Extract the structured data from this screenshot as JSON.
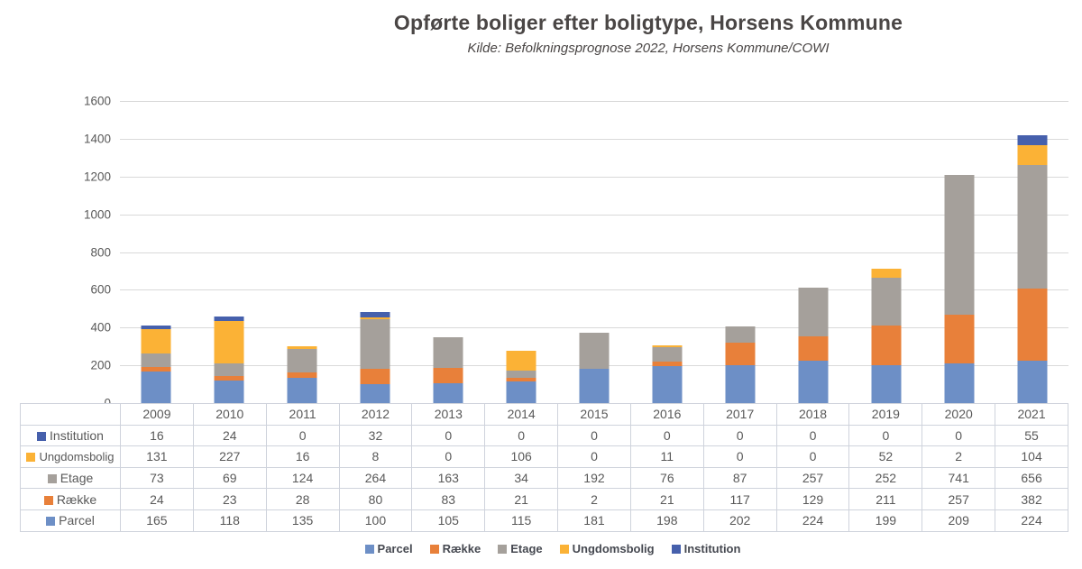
{
  "header": {
    "title": "Opførte boliger efter boligtype, Horsens Kommune",
    "subtitle": "Kilde: Befolkningsprognose 2022, Horsens Kommune/COWI"
  },
  "chart_data": {
    "type": "bar",
    "stacked": true,
    "title": "Opførte boliger efter boligtype, Horsens Kommune",
    "subtitle": "Kilde: Befolkningsprognose 2022, Horsens Kommune/COWI",
    "categories": [
      "2009",
      "2010",
      "2011",
      "2012",
      "2013",
      "2014",
      "2015",
      "2016",
      "2017",
      "2018",
      "2019",
      "2020",
      "2021"
    ],
    "series": [
      {
        "name": "Parcel",
        "color": "#6d8fc6",
        "values": [
          165,
          118,
          135,
          100,
          105,
          115,
          181,
          198,
          202,
          224,
          199,
          209,
          224
        ]
      },
      {
        "name": "Række",
        "color": "#e8803a",
        "values": [
          24,
          23,
          28,
          80,
          83,
          21,
          2,
          21,
          117,
          129,
          211,
          257,
          382
        ]
      },
      {
        "name": "Etage",
        "color": "#a5a09b",
        "values": [
          73,
          69,
          124,
          264,
          163,
          34,
          192,
          76,
          87,
          257,
          252,
          741,
          656
        ]
      },
      {
        "name": "Ungdomsbolig",
        "color": "#fbb236",
        "values": [
          131,
          227,
          16,
          8,
          0,
          106,
          0,
          11,
          0,
          0,
          52,
          2,
          104
        ]
      },
      {
        "name": "Institution",
        "color": "#4660ac",
        "values": [
          16,
          24,
          0,
          32,
          0,
          0,
          0,
          0,
          0,
          0,
          0,
          0,
          55
        ]
      }
    ],
    "table_row_order": [
      "Institution",
      "Ungdomsbolig",
      "Etage",
      "Række",
      "Parcel"
    ],
    "legend_order": [
      "Parcel",
      "Række",
      "Etage",
      "Ungdomsbolig",
      "Institution"
    ],
    "legend_position": "bottom",
    "ylim": [
      0,
      1600
    ],
    "yticks": [
      0,
      200,
      400,
      600,
      800,
      1000,
      1200,
      1400,
      1600
    ],
    "grid": true
  }
}
